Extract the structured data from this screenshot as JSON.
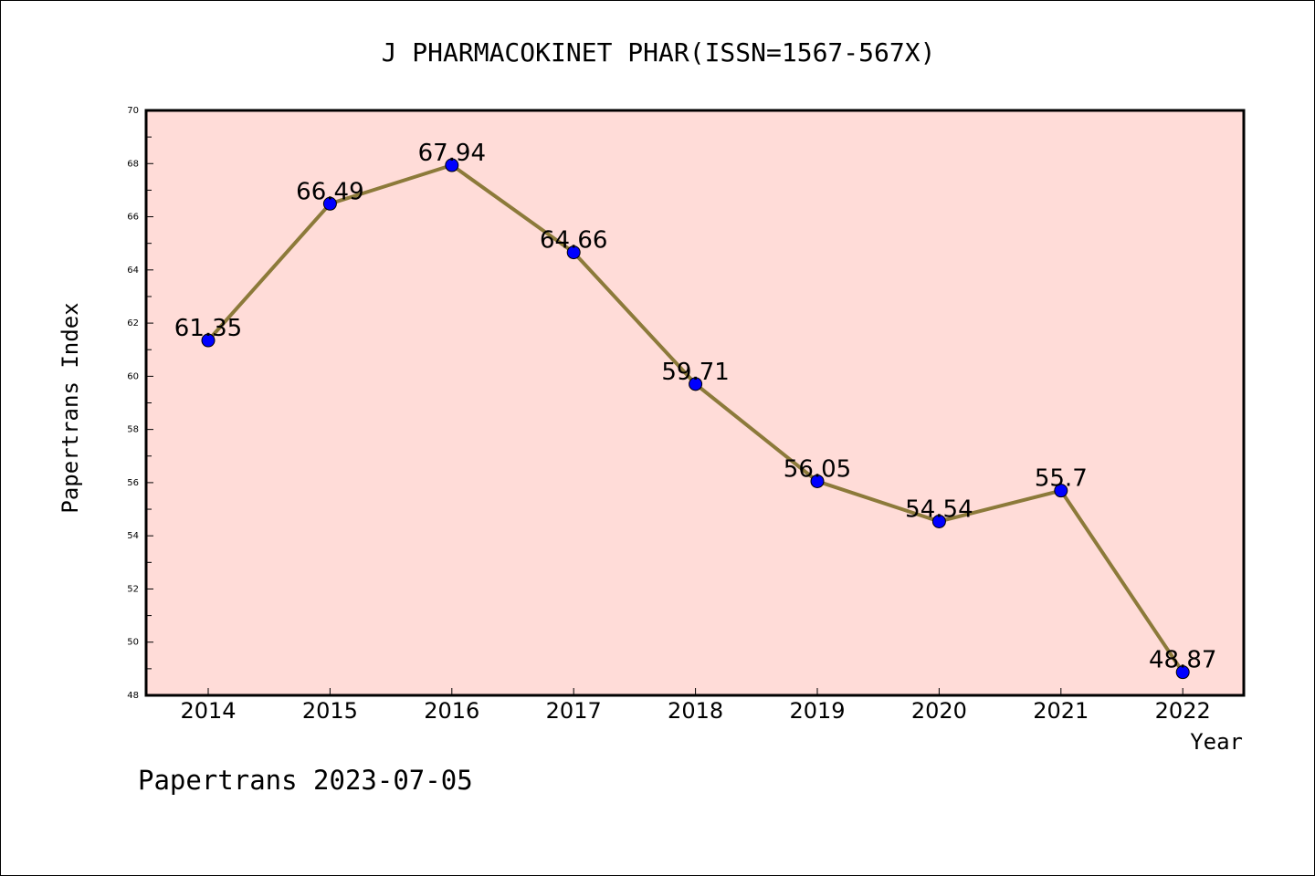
{
  "chart_data": {
    "type": "line",
    "title": "J PHARMACOKINET PHAR(ISSN=1567-567X)",
    "xlabel": "Year",
    "ylabel": "Papertrans Index",
    "footer": "Papertrans 2023-07-05",
    "categories": [
      "2014",
      "2015",
      "2016",
      "2017",
      "2018",
      "2019",
      "2020",
      "2021",
      "2022"
    ],
    "series": [
      {
        "values": [
          61.35,
          66.49,
          67.94,
          64.66,
          59.71,
          56.05,
          54.54,
          55.7,
          48.87
        ],
        "labels": [
          "61.35",
          "66.49",
          "67.94",
          "64.66",
          "59.71",
          "56.05",
          "54.54",
          "55.7",
          "48.87"
        ]
      }
    ],
    "ylim": [
      48,
      70
    ],
    "yticks": [
      "48",
      "50",
      "52",
      "54",
      "56",
      "58",
      "60",
      "62",
      "64",
      "66",
      "68",
      "70"
    ],
    "grid": false,
    "colors": {
      "plot_background": "#ffdcd8",
      "line": "#8c7a3a",
      "marker": "#0000ff"
    }
  }
}
